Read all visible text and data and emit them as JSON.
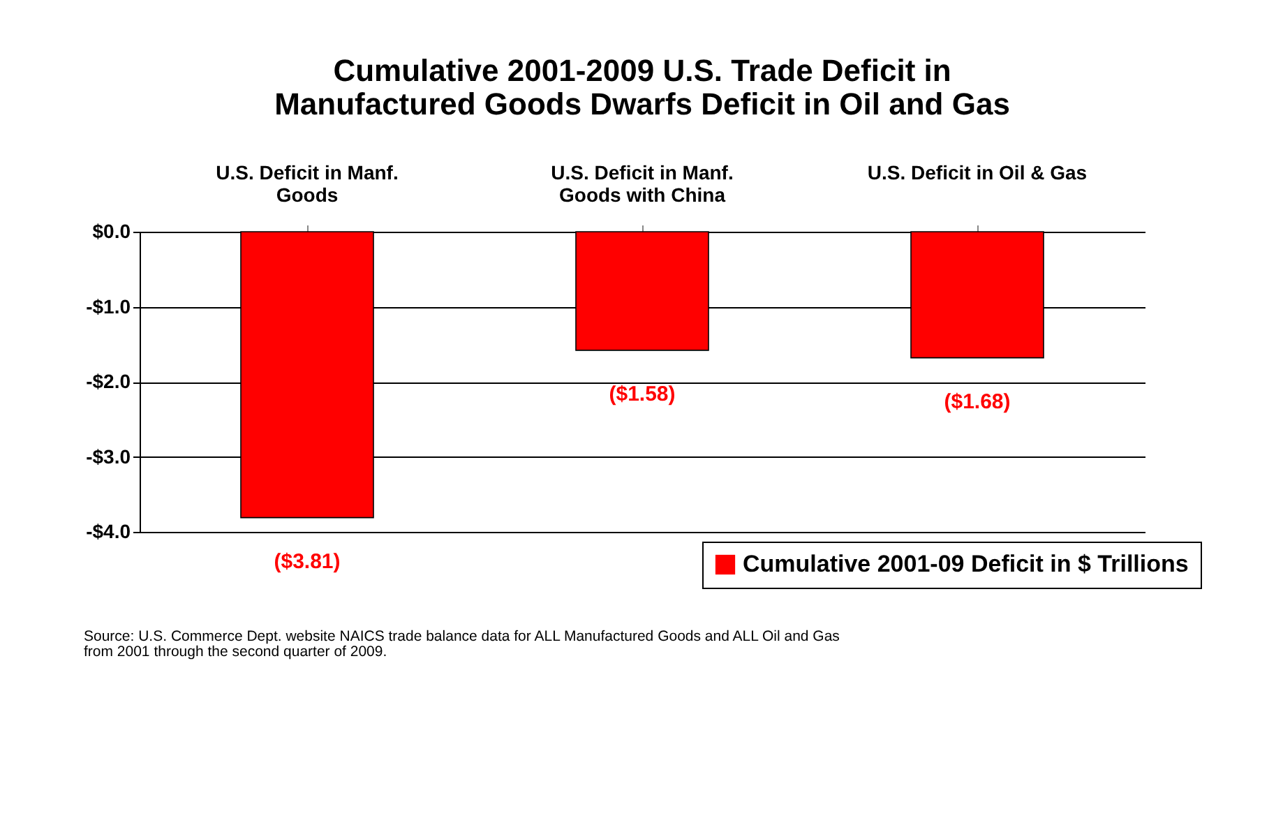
{
  "chart_data": {
    "type": "bar",
    "title": [
      "Cumulative 2001-2009 U.S. Trade Deficit in",
      "Manufactured Goods Dwarfs Deficit in Oil and Gas"
    ],
    "categories": [
      "U.S. Deficit in Manf. Goods",
      "U.S. Deficit in Manf. Goods with China",
      "U.S. Deficit in Oil & Gas"
    ],
    "series": [
      {
        "name": "Cumulative 2001-09 Deficit in $ Trillions",
        "color": "#ff0000",
        "values": [
          -3.81,
          -1.58,
          -1.68
        ],
        "value_labels": [
          "($3.81)",
          "($1.58)",
          "($1.68)"
        ]
      }
    ],
    "ylim": [
      -4,
      0
    ],
    "yticks": [
      {
        "value": 0,
        "label": "$0.0"
      },
      {
        "value": -1,
        "label": "-$1.0"
      },
      {
        "value": -2,
        "label": "-$2.0"
      },
      {
        "value": -3,
        "label": "-$3.0"
      },
      {
        "value": -4,
        "label": "-$4.0"
      }
    ],
    "grid": "y",
    "legend": "bottom right",
    "annotations": [
      "Source: U.S. Commerce Dept. website NAICS trade balance data for ALL Manufactured Goods and ALL Oil and Gas from 2001 through the second quarter of 2009."
    ]
  }
}
